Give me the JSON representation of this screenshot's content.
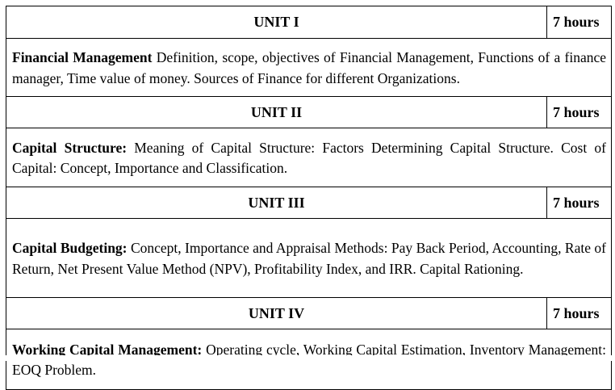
{
  "units": [
    {
      "title": "UNIT I",
      "hours": "7 hours",
      "topic": "Financial Management",
      "content": " Definition, scope, objectives of Financial Management, Functions of a finance manager, Time value of money. Sources of Finance for different Organizations."
    },
    {
      "title": "UNIT II",
      "hours": "7 hours",
      "topic": "Capital Structure:",
      "content": " Meaning of Capital Structure: Factors Determining Capital Structure. Cost of Capital: Concept, Importance and Classification."
    },
    {
      "title": "UNIT III",
      "hours": "7 hours",
      "topic": "Capital Budgeting:",
      "content": " Concept, Importance and Appraisal Methods: Pay Back Period, Accounting, Rate of Return, Net Present Value Method (NPV), Profitability Index, and IRR. Capital Rationing."
    },
    {
      "title": "UNIT IV",
      "hours": "7 hours",
      "topic": "Working Capital Management:",
      "content": " Operating cycle, Working Capital Estimation, Inventory Management: EOQ Problem."
    }
  ]
}
